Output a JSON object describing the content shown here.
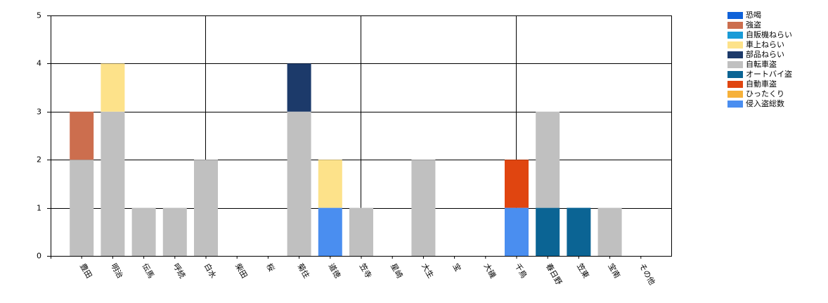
{
  "chart_data": {
    "type": "stacked_bar",
    "categories": [
      "豊田",
      "明治",
      "伝馬",
      "呼続",
      "白水",
      "柴田",
      "桜",
      "菊住",
      "道徳",
      "笠寺",
      "星崎",
      "大生",
      "宝",
      "大磯",
      "千鳥",
      "春日野",
      "笠東",
      "宝南",
      "その他"
    ],
    "series": [
      {
        "name": "恐喝",
        "color": "#0f62d9",
        "values": [
          0,
          0,
          0,
          0,
          0,
          0,
          0,
          0,
          0,
          0,
          0,
          0,
          0,
          0,
          0,
          0,
          0,
          0,
          0
        ]
      },
      {
        "name": "強盗",
        "color": "#cc6e4e",
        "values": [
          1,
          0,
          0,
          0,
          0,
          0,
          0,
          0,
          0,
          0,
          0,
          0,
          0,
          0,
          0,
          0,
          0,
          0,
          0
        ]
      },
      {
        "name": "自販機ねらい",
        "color": "#1a9bd7",
        "values": [
          0,
          0,
          0,
          0,
          0,
          0,
          0,
          0,
          0,
          0,
          0,
          0,
          0,
          0,
          0,
          0,
          0,
          0,
          0
        ]
      },
      {
        "name": "車上ねらい",
        "color": "#fde28a",
        "values": [
          0,
          1,
          0,
          0,
          0,
          0,
          0,
          0,
          1,
          0,
          0,
          0,
          0,
          0,
          0,
          0,
          0,
          0,
          0
        ]
      },
      {
        "name": "部品ねらい",
        "color": "#1c3a6a",
        "values": [
          0,
          0,
          0,
          0,
          0,
          0,
          0,
          1,
          0,
          0,
          0,
          0,
          0,
          0,
          0,
          0,
          0,
          0,
          0
        ]
      },
      {
        "name": "自転車盗",
        "color": "#c0c0c0",
        "values": [
          2,
          3,
          1,
          1,
          2,
          0,
          0,
          3,
          0,
          1,
          0,
          2,
          0,
          0,
          0,
          2,
          0,
          1,
          0
        ]
      },
      {
        "name": "オートバイ盗",
        "color": "#0b6494",
        "values": [
          0,
          0,
          0,
          0,
          0,
          0,
          0,
          0,
          0,
          0,
          0,
          0,
          0,
          0,
          0,
          1,
          1,
          0,
          0
        ]
      },
      {
        "name": "自動車盗",
        "color": "#e04510",
        "values": [
          0,
          0,
          0,
          0,
          0,
          0,
          0,
          0,
          0,
          0,
          0,
          0,
          0,
          0,
          1,
          0,
          0,
          0,
          0
        ]
      },
      {
        "name": "ひったくり",
        "color": "#f6b13a",
        "values": [
          0,
          0,
          0,
          0,
          0,
          0,
          0,
          0,
          0,
          0,
          0,
          0,
          0,
          0,
          0,
          0,
          0,
          0,
          0
        ]
      },
      {
        "name": "侵入盗総数",
        "color": "#4a8ef0",
        "values": [
          0,
          0,
          0,
          0,
          0,
          0,
          0,
          0,
          1,
          0,
          0,
          0,
          0,
          0,
          1,
          0,
          0,
          0,
          0
        ]
      }
    ],
    "ylim": [
      0,
      5
    ],
    "yticks": [
      0,
      1,
      2,
      3,
      4,
      5
    ],
    "grid": true
  }
}
